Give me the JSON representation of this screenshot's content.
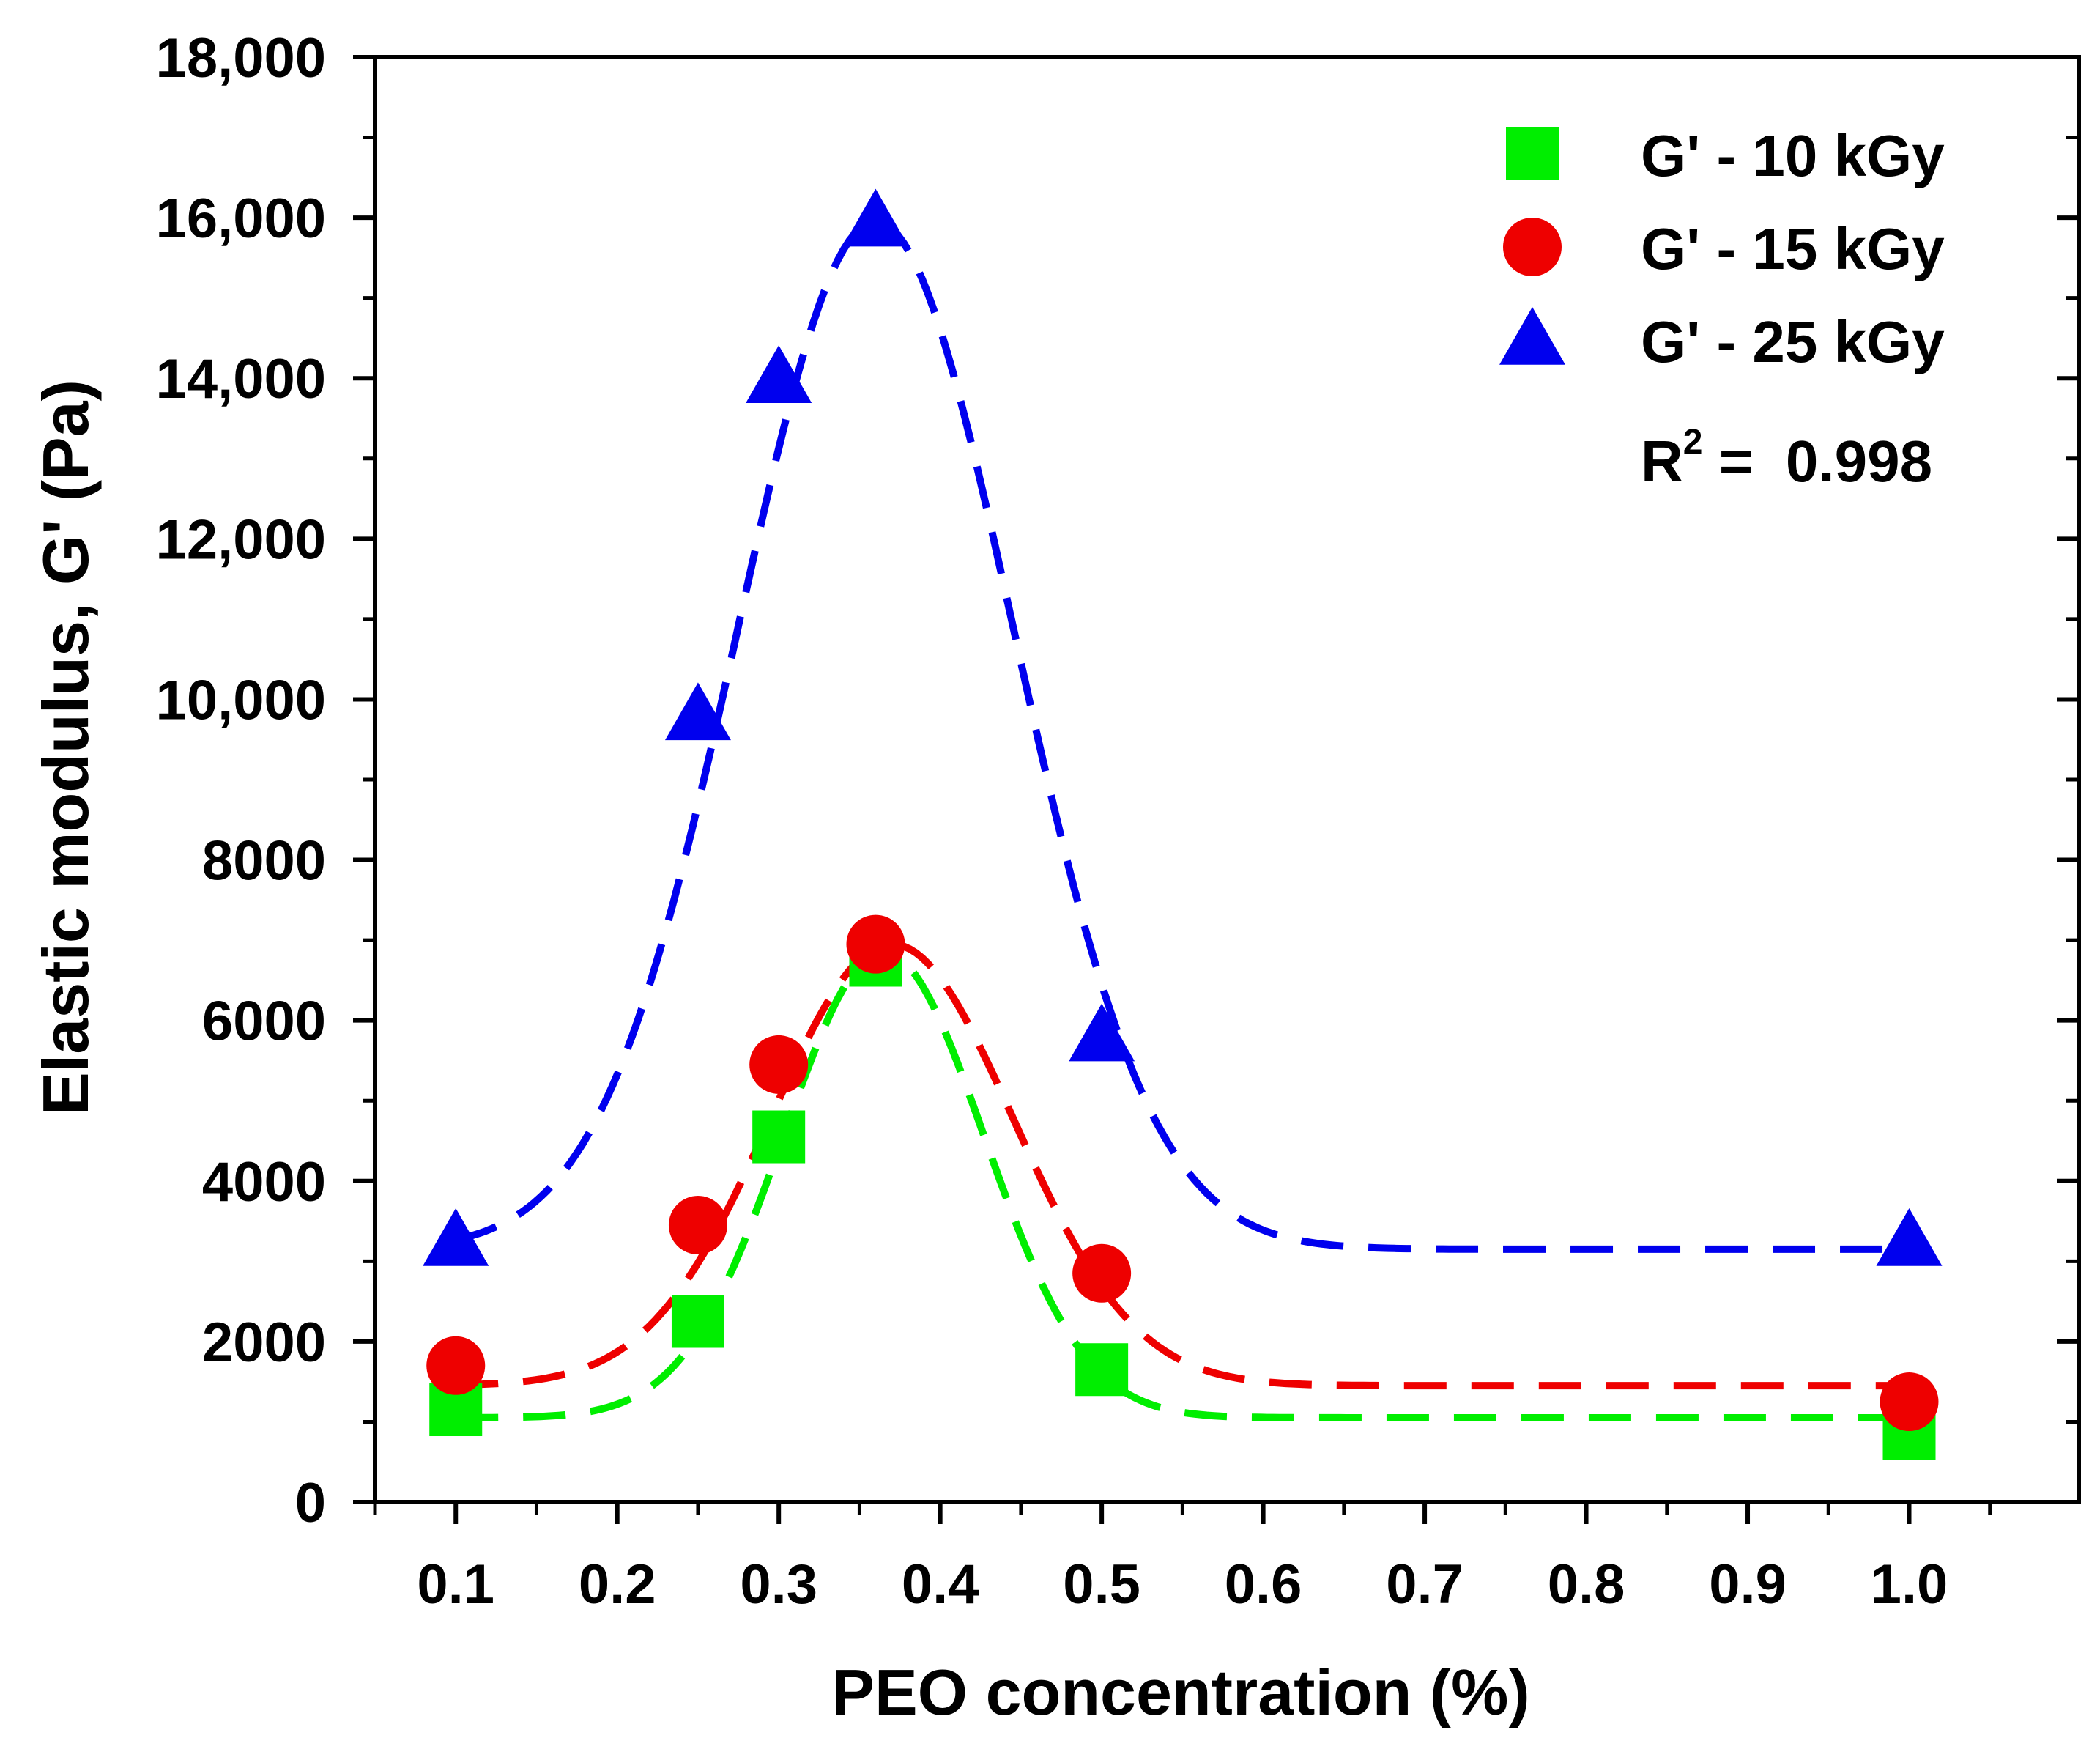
{
  "chart_data": {
    "type": "scatter",
    "xlabel": "PEO concentration (%)",
    "ylabel": "Elastic modulus, G' (Pa)",
    "xlim": [
      0.05,
      1.105
    ],
    "ylim": [
      0,
      18000
    ],
    "x_ticks": [
      0.1,
      0.2,
      0.3,
      0.4,
      0.5,
      0.6,
      0.7,
      0.8,
      0.9,
      1.0
    ],
    "x_tick_labels": [
      "0.1",
      "0.2",
      "0.3",
      "0.4",
      "0.5",
      "0.6",
      "0.7",
      "0.8",
      "0.9",
      "1.0"
    ],
    "y_ticks": [
      0,
      2000,
      4000,
      6000,
      8000,
      10000,
      12000,
      14000,
      16000,
      18000
    ],
    "y_tick_labels": [
      "0",
      "2000",
      "4000",
      "6000",
      "8000",
      "10,000",
      "12,000",
      "14,000",
      "16,000",
      "18,000"
    ],
    "grid": false,
    "legend_position": "top-right",
    "annotation": {
      "prefix": "R",
      "superscript": "2",
      "text": " =  0.998"
    },
    "series": [
      {
        "name": "G' - 10 kGy",
        "color": "#00ee00",
        "marker": "square",
        "x": [
          0.1,
          0.25,
          0.3,
          0.36,
          0.5,
          1.0
        ],
        "values": [
          1150,
          2250,
          4550,
          6750,
          1650,
          850
        ],
        "fit": {
          "baseline": 1050,
          "amplitude": 5800,
          "center": 0.365,
          "width": 0.062,
          "x_start": 0.1,
          "x_end": 1.0
        }
      },
      {
        "name": "G' - 15 kGy",
        "color": "#ee0000",
        "marker": "circle",
        "x": [
          0.1,
          0.25,
          0.3,
          0.36,
          0.5,
          1.0
        ],
        "values": [
          1700,
          3450,
          5450,
          6950,
          2850,
          1250
        ],
        "fit": {
          "baseline": 1450,
          "amplitude": 5500,
          "center": 0.37,
          "width": 0.075,
          "x_start": 0.1,
          "x_end": 1.0
        }
      },
      {
        "name": "G' - 25 kGy",
        "color": "#0000ee",
        "marker": "triangle",
        "x": [
          0.1,
          0.25,
          0.3,
          0.36,
          0.5,
          1.0
        ],
        "values": [
          3250,
          9800,
          14000,
          15950,
          5800,
          3250
        ],
        "fit": {
          "baseline": 3150,
          "amplitude": 12800,
          "center": 0.36,
          "width": 0.085,
          "x_start": 0.1,
          "x_end": 1.0
        }
      }
    ]
  }
}
